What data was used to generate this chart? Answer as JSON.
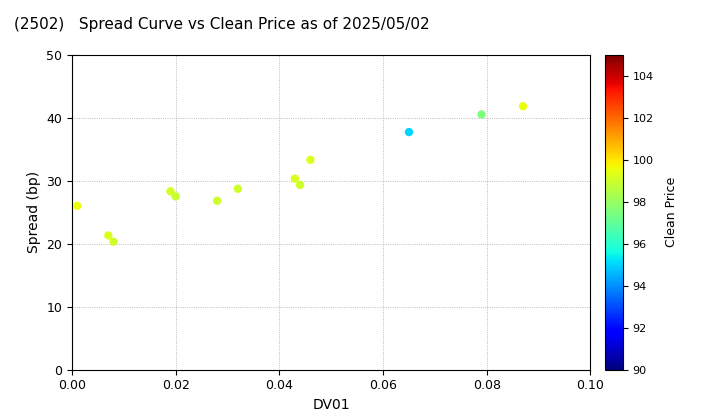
{
  "title": "(2502)   Spread Curve vs Clean Price as of 2025/05/02",
  "xlabel": "DV01",
  "ylabel": "Spread (bp)",
  "colorbar_label": "Clean Price",
  "xlim": [
    0.0,
    0.1
  ],
  "ylim": [
    0,
    50
  ],
  "xticks": [
    0.0,
    0.02,
    0.04,
    0.06,
    0.08,
    0.1
  ],
  "yticks": [
    0,
    10,
    20,
    30,
    40,
    50
  ],
  "colorbar_min": 90,
  "colorbar_max": 105,
  "colorbar_ticks": [
    90,
    92,
    94,
    96,
    98,
    100,
    102,
    104
  ],
  "points": [
    {
      "dv01": 0.001,
      "spread": 26.0,
      "price": 99.5
    },
    {
      "dv01": 0.007,
      "spread": 21.3,
      "price": 99.2
    },
    {
      "dv01": 0.008,
      "spread": 20.3,
      "price": 99.0
    },
    {
      "dv01": 0.019,
      "spread": 28.3,
      "price": 99.1
    },
    {
      "dv01": 0.02,
      "spread": 27.5,
      "price": 98.9
    },
    {
      "dv01": 0.028,
      "spread": 26.8,
      "price": 99.0
    },
    {
      "dv01": 0.032,
      "spread": 28.7,
      "price": 99.0
    },
    {
      "dv01": 0.043,
      "spread": 30.3,
      "price": 99.2
    },
    {
      "dv01": 0.044,
      "spread": 29.3,
      "price": 99.0
    },
    {
      "dv01": 0.046,
      "spread": 33.3,
      "price": 99.3
    },
    {
      "dv01": 0.065,
      "spread": 37.7,
      "price": 95.0
    },
    {
      "dv01": 0.079,
      "spread": 40.5,
      "price": 97.5
    },
    {
      "dv01": 0.087,
      "spread": 41.8,
      "price": 99.5
    }
  ],
  "background_color": "#ffffff",
  "marker_size": 25,
  "figwidth": 7.2,
  "figheight": 4.2,
  "dpi": 100
}
